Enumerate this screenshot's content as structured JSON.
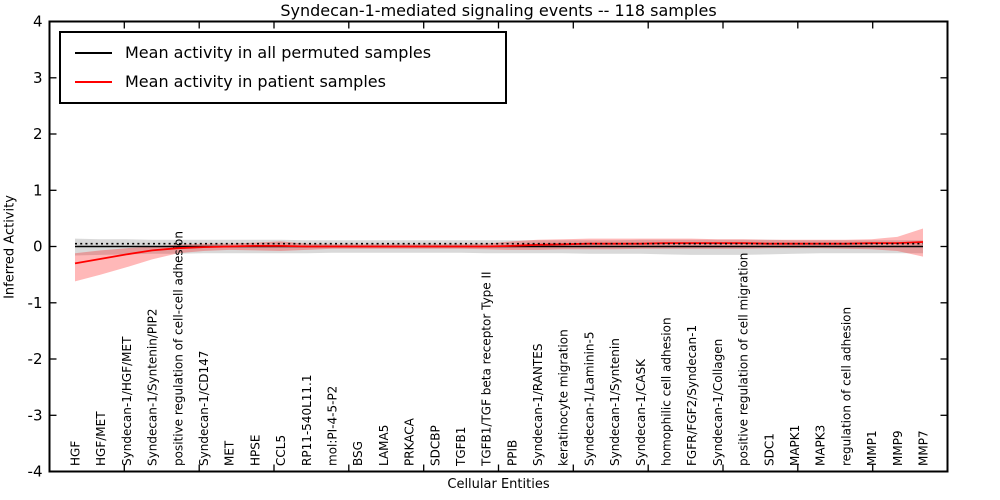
{
  "chart_data": {
    "type": "line",
    "title": "Syndecan-1-mediated signaling events -- 118 samples",
    "xlabel": "Cellular Entities",
    "ylabel": "Inferred Activity",
    "ylim": [
      -4,
      4
    ],
    "ytick_labels": [
      "4",
      "3",
      "2",
      "1",
      "0",
      "-1",
      "-2",
      "-3",
      "-4"
    ],
    "ytick_values": [
      4,
      3,
      2,
      1,
      0,
      -1,
      -2,
      -3,
      -4
    ],
    "grid": false,
    "legend_position": "upper left",
    "categories": [
      "HGF",
      "HGF/MET",
      "Syndecan-1/HGF/MET",
      "Syndecan-1/Syntenin/PIP2",
      "positive regulation of cell-cell adhesion",
      "Syndecan-1/CD147",
      "MET",
      "HPSE",
      "CCL5",
      "RP11-540L11.1",
      "mol:PI-4-5-P2",
      "BSG",
      "LAMA5",
      "PRKACA",
      "SDCBP",
      "TGFB1",
      "TGFB1/TGF beta receptor Type II",
      "PPIB",
      "Syndecan-1/RANTES",
      "keratinocyte migration",
      "Syndecan-1/Laminin-5",
      "Syndecan-1/Syntenin",
      "Syndecan-1/CASK",
      "homophilic cell adhesion",
      "FGFR/FGF2/Syndecan-1",
      "Syndecan-1/Collagen",
      "positive regulation of cell migration",
      "SDC1",
      "MAPK1",
      "MAPK3",
      "regulation of cell adhesion",
      "MMP1",
      "MMP9",
      "MMP7"
    ],
    "series": [
      {
        "name": "Mean activity in all permuted samples",
        "color": "#000000",
        "band_color": "rgba(120,120,120,0.28)",
        "values": [
          0,
          0,
          0,
          0,
          0,
          0,
          0,
          0,
          0,
          0,
          0,
          0,
          0,
          0,
          0,
          0,
          0,
          0,
          0,
          0,
          0,
          0,
          0,
          0,
          0,
          0,
          0,
          0,
          0,
          0,
          0,
          0,
          0,
          0
        ],
        "band_upper": [
          0.14,
          0.13,
          0.13,
          0.12,
          0.12,
          0.12,
          0.12,
          0.12,
          0.12,
          0.11,
          0.11,
          0.11,
          0.11,
          0.11,
          0.11,
          0.11,
          0.11,
          0.11,
          0.11,
          0.11,
          0.11,
          0.11,
          0.12,
          0.12,
          0.12,
          0.12,
          0.12,
          0.12,
          0.11,
          0.11,
          0.11,
          0.11,
          0.11,
          0.11
        ],
        "band_lower": [
          -0.16,
          -0.15,
          -0.14,
          -0.13,
          -0.13,
          -0.12,
          -0.12,
          -0.12,
          -0.12,
          -0.12,
          -0.11,
          -0.11,
          -0.11,
          -0.11,
          -0.11,
          -0.11,
          -0.12,
          -0.12,
          -0.12,
          -0.12,
          -0.13,
          -0.13,
          -0.13,
          -0.14,
          -0.15,
          -0.15,
          -0.15,
          -0.14,
          -0.13,
          -0.12,
          -0.12,
          -0.12,
          -0.12,
          -0.12
        ]
      },
      {
        "name": "Mean activity in patient samples",
        "color": "#ff0000",
        "band_color": "rgba(255,0,0,0.28)",
        "values": [
          -0.3,
          -0.22,
          -0.14,
          -0.07,
          -0.03,
          -0.01,
          0.0,
          0.01,
          0.01,
          0.0,
          0.0,
          0.0,
          0.0,
          0.0,
          0.0,
          0.0,
          0.0,
          0.01,
          0.03,
          0.04,
          0.05,
          0.05,
          0.05,
          0.06,
          0.06,
          0.06,
          0.06,
          0.05,
          0.05,
          0.05,
          0.05,
          0.06,
          0.06,
          0.08
        ],
        "band_upper": [
          -0.12,
          -0.07,
          -0.03,
          0.0,
          0.03,
          0.05,
          0.05,
          0.07,
          0.09,
          0.05,
          0.04,
          0.04,
          0.04,
          0.04,
          0.04,
          0.04,
          0.05,
          0.09,
          0.12,
          0.13,
          0.14,
          0.14,
          0.14,
          0.14,
          0.14,
          0.13,
          0.13,
          0.12,
          0.12,
          0.12,
          0.12,
          0.13,
          0.17,
          0.32
        ],
        "band_lower": [
          -0.62,
          -0.5,
          -0.37,
          -0.23,
          -0.12,
          -0.08,
          -0.06,
          -0.07,
          -0.08,
          -0.06,
          -0.04,
          -0.04,
          -0.04,
          -0.04,
          -0.04,
          -0.04,
          -0.05,
          -0.06,
          -0.06,
          -0.05,
          -0.05,
          -0.05,
          -0.04,
          -0.04,
          -0.04,
          -0.04,
          -0.04,
          -0.03,
          -0.03,
          -0.03,
          -0.04,
          -0.05,
          -0.08,
          -0.18
        ]
      }
    ],
    "reference_line": {
      "style": "dotted",
      "color": "#000000",
      "value": 0.05
    }
  }
}
